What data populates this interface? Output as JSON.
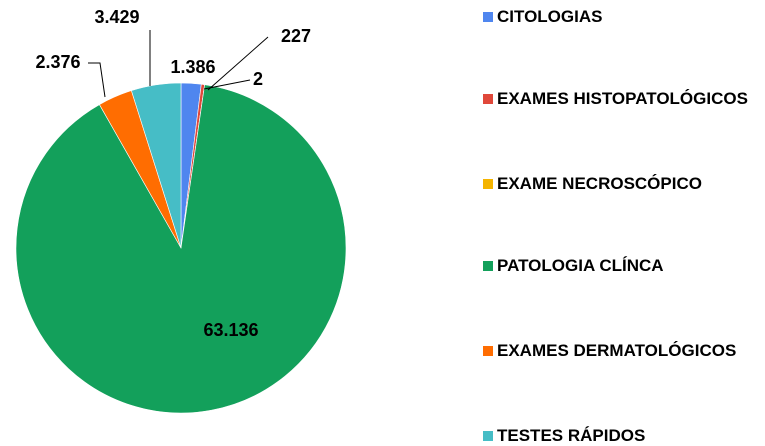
{
  "chart_data": {
    "type": "pie",
    "categories": [
      "CITOLOGIAS",
      "EXAMES HISTOPATOLÓGICOS",
      "EXAME NECROSCÓPICO",
      "PATOLOGIA CLÍNCA",
      "EXAMES DERMATOLÓGICOS",
      "TESTES RÁPIDOS"
    ],
    "values": [
      1386,
      227,
      2,
      63136,
      2376,
      3429
    ],
    "value_labels": [
      "1.386",
      "227",
      "2",
      "63.136",
      "2.376",
      "3.429"
    ],
    "colors": [
      "#4f86ef",
      "#e0483a",
      "#f4b400",
      "#13a05b",
      "#ff6d01",
      "#46bdc6"
    ],
    "legend": "right"
  }
}
